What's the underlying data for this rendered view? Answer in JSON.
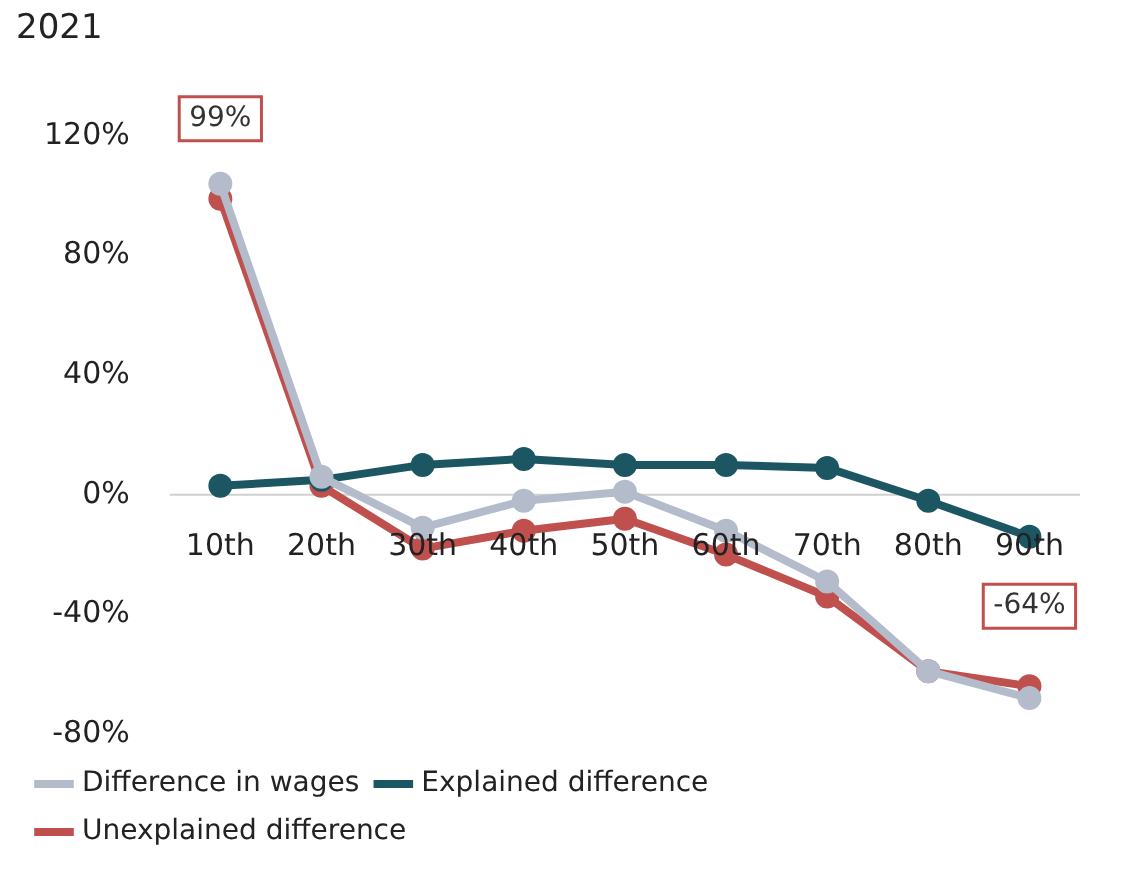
{
  "chart_data": {
    "type": "line",
    "title": "2021",
    "categories": [
      "10th",
      "20th",
      "30th",
      "40th",
      "50th",
      "60th",
      "70th",
      "80th",
      "90th"
    ],
    "series": [
      {
        "name": "Difference in wages",
        "color": "#b4bccb",
        "values": [
          104,
          6,
          -11,
          -2,
          1,
          -12,
          -29,
          -59,
          -68
        ]
      },
      {
        "name": "Explained difference",
        "color": "#1c5663",
        "values": [
          3,
          5,
          10,
          12,
          10,
          10,
          9,
          -2,
          -14
        ]
      },
      {
        "name": "Unexplained difference",
        "color": "#c0504d",
        "values": [
          99,
          3,
          -18,
          -12,
          -8,
          -20,
          -34,
          -59,
          -64
        ],
        "value_labels": [
          "99%",
          null,
          null,
          null,
          null,
          null,
          null,
          null,
          "-64%"
        ]
      }
    ],
    "ylim": [
      -80,
      120
    ],
    "yticks": [
      {
        "value": -80,
        "label": "-80%"
      },
      {
        "value": -40,
        "label": "-40%"
      },
      {
        "value": 0,
        "label": "0%"
      },
      {
        "value": 40,
        "label": "40%"
      },
      {
        "value": 80,
        "label": "80%"
      },
      {
        "value": 120,
        "label": "120%"
      }
    ],
    "grid": false,
    "legend": "bottom",
    "marker": "circle",
    "line_style": "solid"
  }
}
